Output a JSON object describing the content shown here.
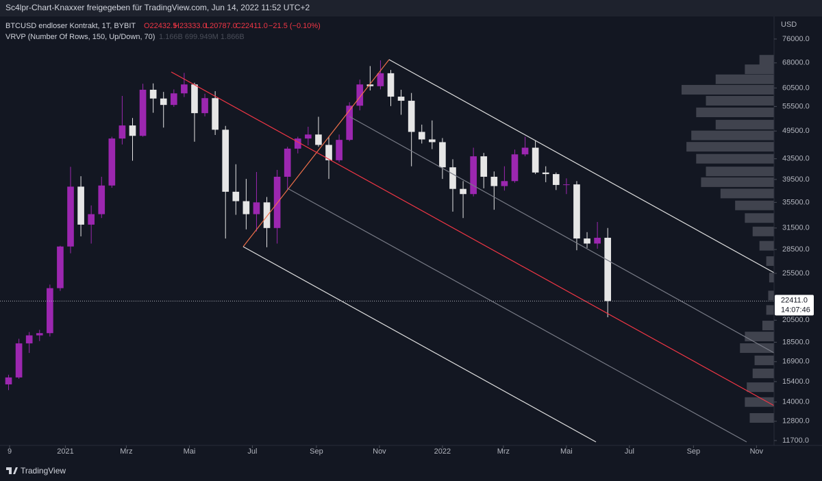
{
  "page_title": "Sc4lpr-Chart-Knaxxer freigegeben für TradingView.com, Jun 14, 2022 11:52 UTC+2",
  "footer": "TradingView",
  "chart_data": {
    "type": "candlestick",
    "title": "BTCUSD endloser Kontrakt, 1T, BYBIT",
    "ohlc_legend": [
      "O22432.5",
      "H23333.0",
      "L20787.0",
      "C22411.0",
      "−21.5 (−0.10%)"
    ],
    "indicator": "VRVP (Number Of Rows, 150, Up/Down, 70)",
    "indicator_values": "1.166B  699.949M  1.866B",
    "y_axis_label": "USD",
    "log_scale": true,
    "up_color": "#9c27b0",
    "down_color": "#e6e6e6",
    "x": [
      -55,
      -45,
      -35,
      -25,
      -15,
      -5,
      5,
      15,
      25,
      35,
      45,
      55,
      65,
      75,
      85,
      95,
      105,
      115,
      125,
      135,
      145,
      155,
      165,
      175,
      185,
      195,
      205,
      215,
      225,
      235,
      245,
      255,
      265,
      275,
      285,
      295,
      305,
      315,
      325,
      335,
      345,
      355,
      365,
      375,
      385,
      395,
      405,
      415,
      425,
      435,
      445,
      455,
      465,
      475,
      485,
      495,
      505,
      515,
      525
    ],
    "open": [
      15200,
      15700,
      18400,
      19100,
      19300,
      23800,
      28900,
      38200,
      32000,
      33600,
      38400,
      47800,
      50800,
      48400,
      60000,
      57600,
      55900,
      59000,
      61500,
      53800,
      57700,
      49800,
      37300,
      35700,
      33600,
      35500,
      31500,
      40000,
      45600,
      47800,
      48700,
      46400,
      43200,
      47500,
      55700,
      61500,
      61000,
      64800,
      58100,
      57000,
      49300,
      47600,
      47000,
      41800,
      37800,
      36900,
      44000,
      40000,
      38300,
      39200,
      44400,
      45800,
      40800,
      40500,
      38500,
      38600,
      30000,
      29300,
      30100
    ],
    "high": [
      15900,
      18800,
      19400,
      19600,
      24200,
      29000,
      41900,
      40100,
      35000,
      40000,
      48200,
      58300,
      52600,
      61700,
      61800,
      59400,
      60100,
      64900,
      62000,
      58900,
      59600,
      50700,
      42400,
      39600,
      40900,
      36400,
      41300,
      46000,
      48200,
      50500,
      52900,
      48300,
      48700,
      56600,
      62900,
      67000,
      68800,
      65800,
      60000,
      59100,
      51000,
      52000,
      47900,
      43400,
      39200,
      45800,
      44700,
      41000,
      42000,
      45400,
      48200,
      47400,
      42000,
      40800,
      39700,
      39200,
      30900,
      32400,
      31500
    ],
    "low": [
      14800,
      15600,
      17600,
      18600,
      19000,
      23500,
      28000,
      30300,
      29300,
      33000,
      38000,
      46500,
      43100,
      48200,
      53900,
      50300,
      55400,
      58000,
      47100,
      53000,
      48600,
      30000,
      33500,
      31300,
      31000,
      28800,
      29300,
      37700,
      44600,
      46300,
      46000,
      39600,
      42800,
      47200,
      54500,
      59800,
      60100,
      55600,
      53400,
      42000,
      46700,
      45500,
      39600,
      34000,
      33000,
      36500,
      37900,
      34300,
      37500,
      38900,
      44000,
      40500,
      39000,
      37600,
      36900,
      28400,
      28700,
      28600,
      20787
    ],
    "close": [
      15700,
      18400,
      19100,
      19300,
      23800,
      28900,
      38200,
      32000,
      33600,
      38400,
      47800,
      50800,
      48400,
      60000,
      57600,
      55900,
      59000,
      61500,
      53800,
      57700,
      49800,
      37300,
      35700,
      33600,
      35500,
      31500,
      40000,
      45600,
      47800,
      48700,
      46400,
      43200,
      47500,
      55700,
      61500,
      61000,
      64800,
      58100,
      57000,
      49300,
      47600,
      47000,
      41800,
      37800,
      36900,
      44000,
      40000,
      38300,
      39200,
      44400,
      45800,
      40800,
      40500,
      38500,
      38600,
      30000,
      29300,
      30100,
      22411
    ],
    "xlim": [
      -58,
      686
    ],
    "xticks": [
      {
        "value": -54,
        "label": "9"
      },
      {
        "value": 0,
        "label": "2021"
      },
      {
        "value": 59,
        "label": "Mrz"
      },
      {
        "value": 120,
        "label": "Mai"
      },
      {
        "value": 181,
        "label": "Jul"
      },
      {
        "value": 243,
        "label": "Sep"
      },
      {
        "value": 304,
        "label": "Nov"
      },
      {
        "value": 365,
        "label": "2022"
      },
      {
        "value": 424,
        "label": "Mrz"
      },
      {
        "value": 485,
        "label": "Mai"
      },
      {
        "value": 546,
        "label": "Jul"
      },
      {
        "value": 608,
        "label": "Sep"
      },
      {
        "value": 669,
        "label": "Nov"
      }
    ],
    "ylim": [
      11440,
      83360
    ],
    "yticks": [
      {
        "value": 76000,
        "label": "76000.0"
      },
      {
        "value": 68000,
        "label": "68000.0"
      },
      {
        "value": 60500,
        "label": "60500.0"
      },
      {
        "value": 55500,
        "label": "55500.0"
      },
      {
        "value": 49500,
        "label": "49500.0"
      },
      {
        "value": 43500,
        "label": "43500.0"
      },
      {
        "value": 39500,
        "label": "39500.0"
      },
      {
        "value": 35500,
        "label": "35500.0"
      },
      {
        "value": 31500,
        "label": "31500.0"
      },
      {
        "value": 28500,
        "label": "28500.0"
      },
      {
        "value": 25500,
        "label": "25500.0"
      },
      {
        "value": 20500,
        "label": "20500.0"
      },
      {
        "value": 18500,
        "label": "18500.0"
      },
      {
        "value": 16900,
        "label": "16900.0"
      },
      {
        "value": 15400,
        "label": "15400.0"
      },
      {
        "value": 14000,
        "label": "14000.0"
      },
      {
        "value": 12800,
        "label": "12800.0"
      },
      {
        "value": 11700,
        "label": "11700.0"
      }
    ],
    "last_price": {
      "value": 22411,
      "label": "22411.0",
      "countdown": "14:07:46"
    },
    "volume_profile": {
      "prices": [
        13000,
        14000,
        15000,
        16000,
        17000,
        18000,
        19000,
        20000,
        21500,
        23000,
        25000,
        27000,
        29000,
        31000,
        33000,
        35000,
        37000,
        39000,
        41000,
        43500,
        46000,
        48500,
        51000,
        54000,
        57000,
        60000,
        63000,
        66000,
        69000
      ],
      "volumes": [
        25,
        30,
        28,
        22,
        20,
        35,
        30,
        12,
        8,
        6,
        5,
        8,
        15,
        22,
        30,
        40,
        55,
        75,
        70,
        80,
        90,
        85,
        60,
        80,
        70,
        95,
        60,
        30,
        15
      ],
      "color": "rgba(120,123,134,0.45)"
    }
  }
}
